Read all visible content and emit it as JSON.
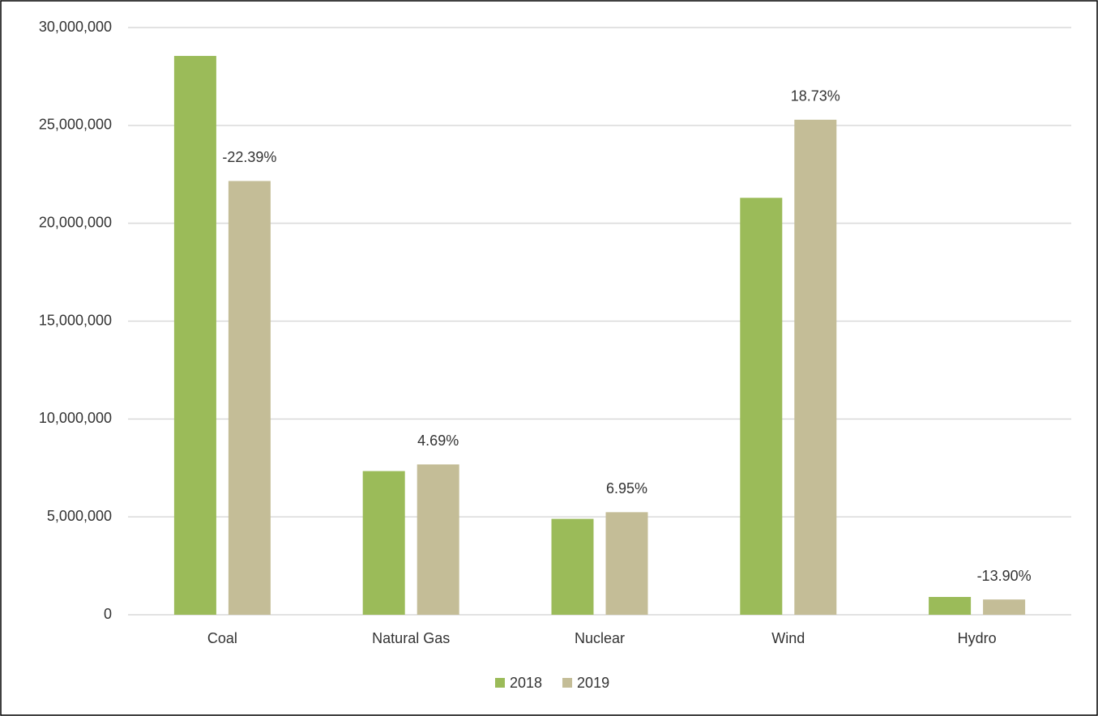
{
  "chart_data": {
    "type": "bar",
    "categories": [
      "Coal",
      "Natural Gas",
      "Nuclear",
      "Wind",
      "Hydro"
    ],
    "series": [
      {
        "name": "2018",
        "color": "#9bbb59",
        "values": [
          28550000,
          7340000,
          4900000,
          21300000,
          910000
        ]
      },
      {
        "name": "2019",
        "color": "#c4bd97",
        "values": [
          22160000,
          7680000,
          5240000,
          25290000,
          780000
        ]
      }
    ],
    "annotations": [
      "-22.39%",
      "4.69%",
      "6.95%",
      "18.73%",
      "-13.90%"
    ],
    "ylim": [
      0,
      30000000
    ],
    "yticks": [
      0,
      {
        "value": 5000000,
        "label": "5,000,000"
      },
      {
        "value": 10000000,
        "label": "10,000,000"
      },
      {
        "value": 15000000,
        "label": "15,000,000"
      },
      {
        "value": 20000000,
        "label": "20,000,000"
      },
      {
        "value": 25000000,
        "label": "25,000,000"
      },
      {
        "value": 30000000,
        "label": "30,000,000"
      }
    ],
    "grid": true,
    "legend": "bottom"
  }
}
